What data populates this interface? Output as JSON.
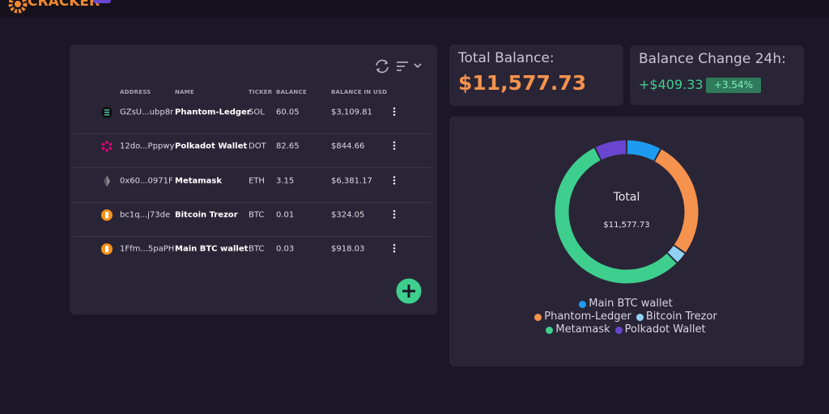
{
  "header": {
    "logo": "CRACKER"
  },
  "table": {
    "columns": [
      "ADDRESS",
      "NAME",
      "TICKER",
      "BALANCE",
      "BALANCE IN USD"
    ],
    "rows": [
      [
        "GZsU...ubp8r",
        "Phantom-Ledger",
        "SOL",
        "60.05",
        "$3,109.81"
      ],
      [
        "12do...Pppwy",
        "Polkadot Wallet",
        "DOT",
        "82.65",
        "$844.66"
      ],
      [
        "0x60...0971F",
        "Metamask",
        "ETH",
        "3.15",
        "$6,381.17"
      ],
      [
        "bc1q...j73de",
        "Bitcoin Trezor",
        "BTC",
        "0.01",
        "$324.05"
      ],
      [
        "1Ffm...5paPH",
        "Main BTC wallet",
        "BTC",
        "0.03",
        "$918.03"
      ]
    ]
  },
  "total_balance": {
    "label": "Total Balance:",
    "value": "$11,577.73"
  },
  "balance_change": {
    "label": "Balance Change 24h:",
    "value": "+$409.33",
    "percent": "+3.54%"
  },
  "chart_data": {
    "type": "donut",
    "center_label": "Total",
    "center_value": "$11,577.73",
    "categories": [
      "Main BTC wallet",
      "Phantom-Ledger",
      "Bitcoin Trezor",
      "Metamask",
      "Polkadot Wallet"
    ],
    "values": [
      918.03,
      3109.81,
      324.05,
      6381.17,
      844.66
    ],
    "colors": [
      "#1e9bf0",
      "#f5924e",
      "#91d2f4",
      "#3ecf8e",
      "#6a45d0"
    ]
  }
}
